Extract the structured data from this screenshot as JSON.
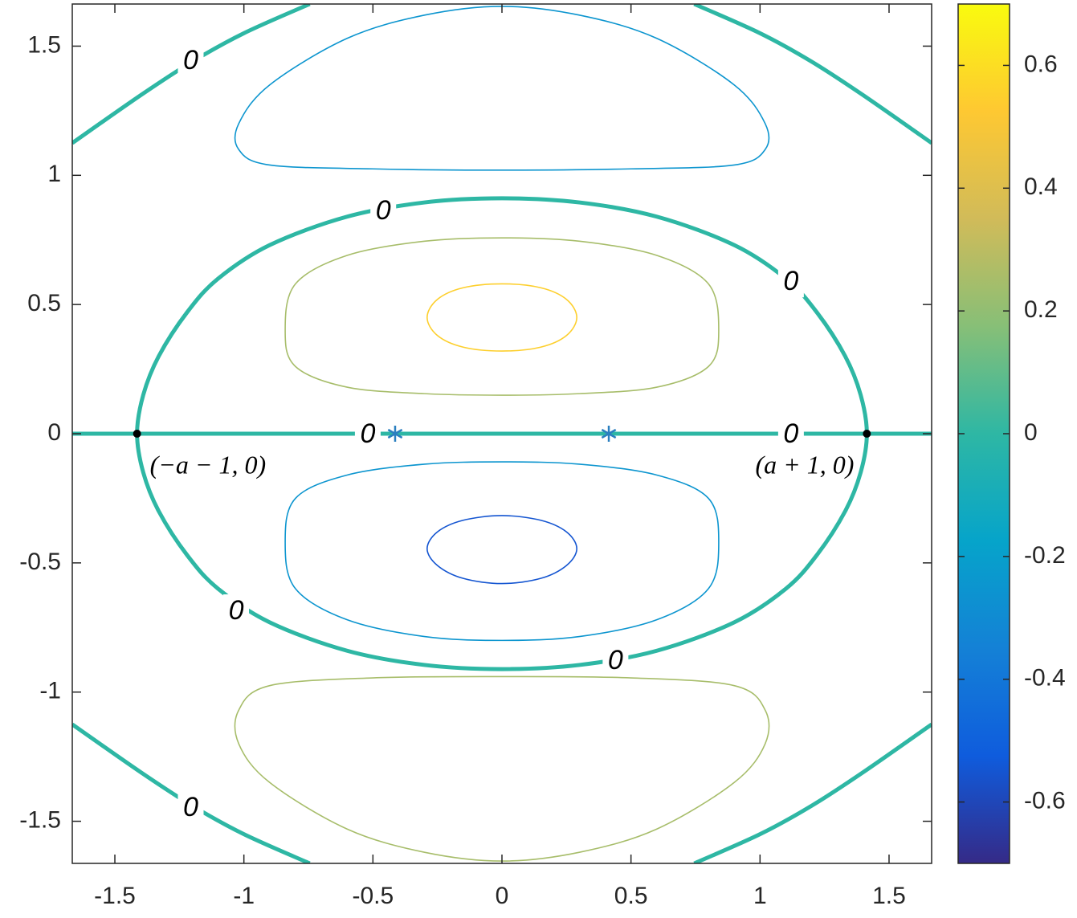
{
  "chart_data": {
    "type": "contour",
    "xlim": [
      -1.665,
      1.665
    ],
    "ylim": [
      -1.663,
      1.663
    ],
    "xticks": [
      -1.5,
      -1,
      -0.5,
      0,
      0.5,
      1,
      1.5
    ],
    "yticks": [
      -1.5,
      -1,
      -0.5,
      0,
      0.5,
      1,
      1.5
    ],
    "clim": [
      -0.7,
      0.7
    ],
    "cticks": [
      -0.6,
      -0.4,
      -0.2,
      0,
      0.2,
      0.4,
      0.6
    ],
    "colormap": [
      "#352a87",
      "#0f5cdd",
      "#1481d6",
      "#06a4ca",
      "#2eb7a4",
      "#87bf77",
      "#d1bb59",
      "#fec832",
      "#f9fb0e"
    ],
    "contours": [
      {
        "level": 0,
        "closed": false,
        "x": [
          -1.665,
          1.665
        ],
        "y": [
          0,
          0
        ]
      },
      {
        "level": 0,
        "closed": true,
        "x": [
          1.414,
          1.39,
          1.33,
          1.22,
          1.1,
          0.9,
          0.6,
          0.3,
          0,
          -0.3,
          -0.6,
          -0.9,
          -1.1,
          -1.22,
          -1.33,
          -1.39,
          -1.414,
          -1.39,
          -1.33,
          -1.22,
          -1.1,
          -0.9,
          -0.6,
          -0.3,
          0,
          0.3,
          0.6,
          0.9,
          1.1,
          1.22,
          1.33,
          1.39
        ],
        "y": [
          0,
          0.15,
          0.3,
          0.47,
          0.6,
          0.73,
          0.84,
          0.895,
          0.911,
          0.895,
          0.84,
          0.73,
          0.6,
          0.47,
          0.3,
          0.15,
          0,
          -0.15,
          -0.3,
          -0.47,
          -0.6,
          -0.73,
          -0.84,
          -0.895,
          -0.911,
          -0.895,
          -0.84,
          -0.73,
          -0.6,
          -0.47,
          -0.3,
          -0.15
        ]
      },
      {
        "level": 0,
        "closed": false,
        "x": [
          -1.665,
          -1.4,
          -1.2,
          -1.0,
          -0.745
        ],
        "y": [
          1.125,
          1.31,
          1.44,
          1.55,
          1.663
        ]
      },
      {
        "level": 0,
        "closed": false,
        "x": [
          0.745,
          1.0,
          1.2,
          1.4,
          1.665
        ],
        "y": [
          1.663,
          1.55,
          1.44,
          1.31,
          1.125
        ]
      },
      {
        "level": 0,
        "closed": false,
        "x": [
          -1.665,
          -1.4,
          -1.2,
          -1.0,
          -0.745
        ],
        "y": [
          -1.125,
          -1.31,
          -1.44,
          -1.55,
          -1.663
        ]
      },
      {
        "level": 0,
        "closed": false,
        "x": [
          0.745,
          1.0,
          1.2,
          1.4,
          1.665
        ],
        "y": [
          -1.663,
          -1.55,
          -1.44,
          -1.31,
          -1.125
        ]
      },
      {
        "level": -0.25,
        "closed": true,
        "x": [
          0,
          0.5,
          0.9,
          1.02,
          1.02,
          0.9,
          0.6,
          0.3,
          0,
          -0.3,
          -0.6,
          -0.9,
          -1.02,
          -1.02,
          -0.9,
          -0.5
        ],
        "y": [
          1.02,
          1.025,
          1.04,
          1.1,
          1.2,
          1.35,
          1.53,
          1.62,
          1.654,
          1.62,
          1.53,
          1.35,
          1.2,
          1.1,
          1.04,
          1.025
        ]
      },
      {
        "level": 0.25,
        "closed": true,
        "x": [
          0,
          0.5,
          0.9,
          1.02,
          1.02,
          0.9,
          0.6,
          0.3,
          0,
          -0.3,
          -0.6,
          -0.9,
          -1.02,
          -1.02,
          -0.9,
          -0.5
        ],
        "y": [
          -0.94,
          -0.945,
          -0.975,
          -1.07,
          -1.2,
          -1.35,
          -1.53,
          -1.62,
          -1.654,
          -1.62,
          -1.53,
          -1.35,
          -1.2,
          -1.07,
          -0.975,
          -0.945
        ]
      },
      {
        "level": 0.25,
        "closed": true,
        "x": [
          0.84,
          0.8,
          0.6,
          0.3,
          0,
          -0.3,
          -0.6,
          -0.8,
          -0.84,
          -0.8,
          -0.6,
          -0.3,
          0,
          0.3,
          0.6,
          0.8
        ],
        "y": [
          0.4,
          0.58,
          0.69,
          0.745,
          0.758,
          0.745,
          0.69,
          0.58,
          0.4,
          0.26,
          0.18,
          0.155,
          0.149,
          0.155,
          0.18,
          0.26
        ]
      },
      {
        "level": -0.25,
        "closed": true,
        "x": [
          0.84,
          0.8,
          0.6,
          0.3,
          0,
          -0.3,
          -0.6,
          -0.8,
          -0.84,
          -0.8,
          -0.6,
          -0.3,
          0,
          0.3,
          0.6,
          0.8
        ],
        "y": [
          -0.42,
          -0.25,
          -0.16,
          -0.118,
          -0.109,
          -0.118,
          -0.16,
          -0.25,
          -0.42,
          -0.6,
          -0.72,
          -0.785,
          -0.8,
          -0.785,
          -0.72,
          -0.6
        ]
      },
      {
        "level": 0.55,
        "closed": true,
        "x": [
          0.29,
          0.25,
          0.15,
          0,
          -0.15,
          -0.25,
          -0.29,
          -0.25,
          -0.15,
          0,
          0.15,
          0.25
        ],
        "y": [
          0.45,
          0.52,
          0.565,
          0.58,
          0.565,
          0.52,
          0.45,
          0.38,
          0.335,
          0.32,
          0.335,
          0.38
        ]
      },
      {
        "level": -0.55,
        "closed": true,
        "x": [
          0.29,
          0.25,
          0.15,
          0,
          -0.15,
          -0.25,
          -0.29,
          -0.25,
          -0.15,
          0,
          0.15,
          0.25
        ],
        "y": [
          -0.445,
          -0.38,
          -0.335,
          -0.317,
          -0.335,
          -0.38,
          -0.445,
          -0.51,
          -0.56,
          -0.58,
          -0.56,
          -0.51
        ]
      }
    ],
    "contour_labels": [
      {
        "text": "0",
        "x": -1.206,
        "y": 1.445
      },
      {
        "text": "0",
        "x": -0.46,
        "y": 0.864
      },
      {
        "text": "0",
        "x": 1.12,
        "y": 0.59
      },
      {
        "text": "0",
        "x": -0.52,
        "y": 0
      },
      {
        "text": "0",
        "x": 1.12,
        "y": 0
      },
      {
        "text": "0",
        "x": -1.03,
        "y": -0.684
      },
      {
        "text": "0",
        "x": 0.44,
        "y": -0.877
      },
      {
        "text": "0",
        "x": -1.206,
        "y": -1.445
      }
    ],
    "points": [
      {
        "label": "(−a − 1, 0)",
        "x": -1.414,
        "y": 0,
        "color": "#000000"
      },
      {
        "label": "(a + 1, 0)",
        "x": 1.414,
        "y": 0,
        "color": "#000000"
      }
    ],
    "stars": {
      "color": "#2a7fc0",
      "x": [
        -0.414,
        0.414
      ],
      "y": [
        0,
        0
      ]
    }
  }
}
